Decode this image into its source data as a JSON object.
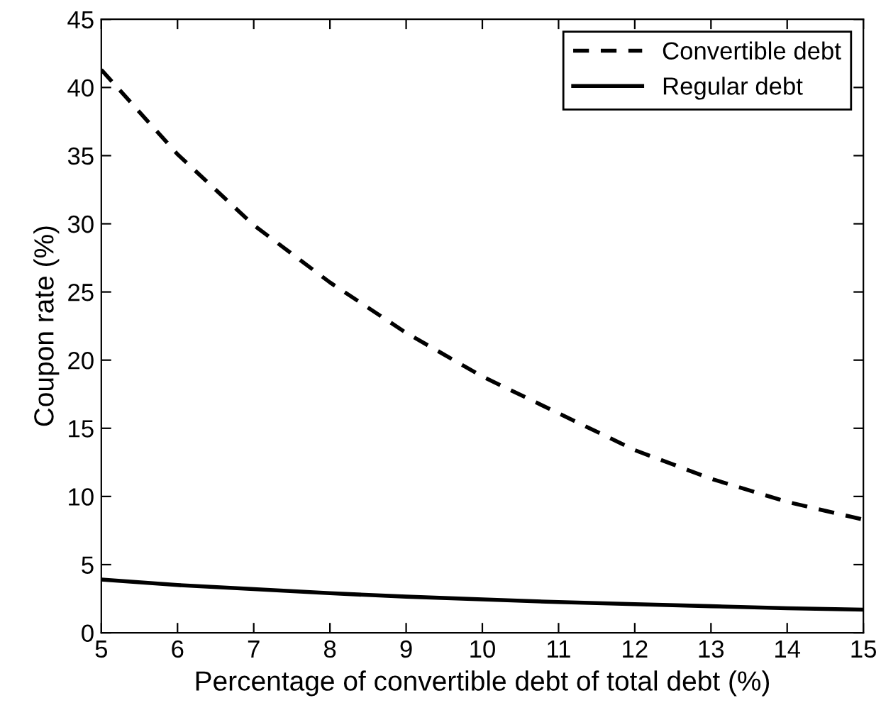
{
  "chart_data": {
    "type": "line",
    "xlabel": "Percentage of convertible debt of total debt (%)",
    "ylabel": "Coupon rate (%)",
    "x": [
      5,
      6,
      7,
      8,
      9,
      10,
      11,
      12,
      13,
      14,
      15
    ],
    "series": [
      {
        "name": "Convertible debt",
        "color": "#000000",
        "line_style": "dashed",
        "values": [
          41.3,
          35.1,
          29.9,
          25.7,
          22.0,
          18.8,
          16.1,
          13.4,
          11.3,
          9.6,
          8.3
        ]
      },
      {
        "name": "Regular debt",
        "color": "#000000",
        "line_style": "solid",
        "values": [
          3.9,
          3.5,
          3.2,
          2.9,
          2.65,
          2.45,
          2.25,
          2.1,
          1.95,
          1.8,
          1.7
        ]
      }
    ],
    "xlim": [
      5,
      15
    ],
    "xticks": [
      5,
      6,
      7,
      8,
      9,
      10,
      11,
      12,
      13,
      14,
      15
    ],
    "ylim": [
      0,
      45
    ],
    "yticks": [
      0,
      5,
      10,
      15,
      20,
      25,
      30,
      35,
      40,
      45
    ],
    "grid": false,
    "legend": "top right"
  }
}
